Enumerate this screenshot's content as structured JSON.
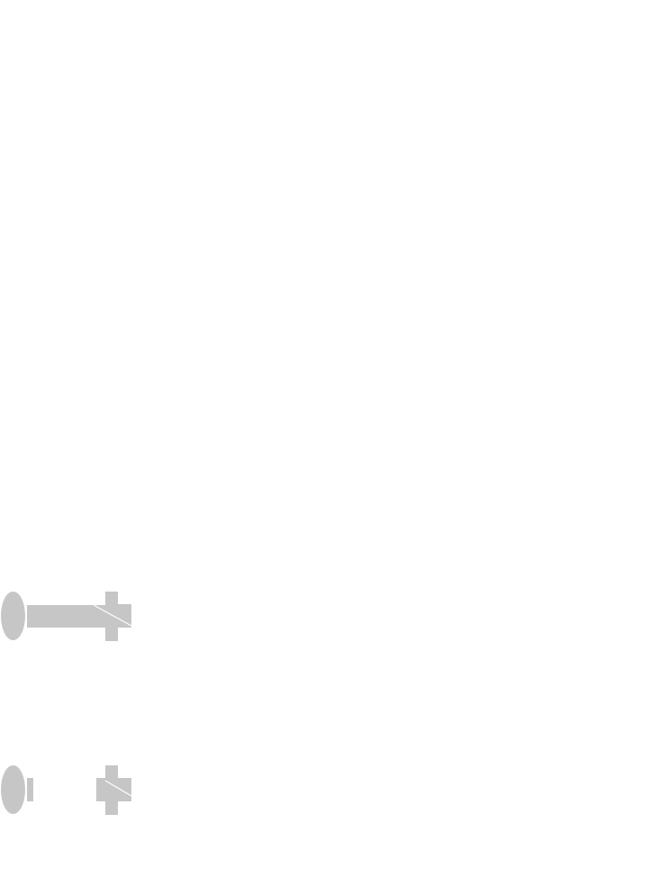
{
  "colors": {
    "background": "#ffffff",
    "part_fill": "#c6c6c6",
    "cut_line": "#ffffff"
  },
  "figures": [
    {
      "id": "assembled",
      "parts": [
        "head-icon",
        "shank-icon",
        "washer-icon",
        "nut-icon"
      ]
    },
    {
      "id": "exploded",
      "parts": [
        "head-icon",
        "shank-stub-icon",
        "collar-icon",
        "washer-icon",
        "nut-icon"
      ]
    }
  ]
}
